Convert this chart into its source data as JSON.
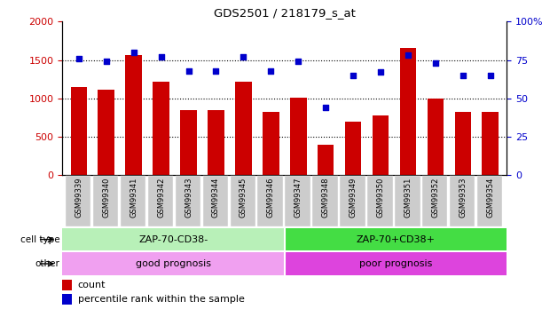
{
  "title": "GDS2501 / 218179_s_at",
  "samples": [
    "GSM99339",
    "GSM99340",
    "GSM99341",
    "GSM99342",
    "GSM99343",
    "GSM99344",
    "GSM99345",
    "GSM99346",
    "GSM99347",
    "GSM99348",
    "GSM99349",
    "GSM99350",
    "GSM99351",
    "GSM99352",
    "GSM99353",
    "GSM99354"
  ],
  "counts": [
    1150,
    1110,
    1560,
    1220,
    840,
    840,
    1220,
    820,
    1010,
    390,
    690,
    770,
    1660,
    990,
    820,
    820
  ],
  "percentiles": [
    76,
    74,
    80,
    77,
    68,
    68,
    77,
    68,
    74,
    44,
    65,
    67,
    78,
    73,
    65,
    65
  ],
  "bar_color": "#cc0000",
  "dot_color": "#0000cc",
  "left_ylim": [
    0,
    2000
  ],
  "right_ylim": [
    0,
    100
  ],
  "left_yticks": [
    0,
    500,
    1000,
    1500,
    2000
  ],
  "right_yticks": [
    0,
    25,
    50,
    75,
    100
  ],
  "right_yticklabels": [
    "0",
    "25",
    "50",
    "75",
    "100%"
  ],
  "grid_values": [
    500,
    1000,
    1500
  ],
  "cell_type_labels": [
    "ZAP-70-CD38-",
    "ZAP-70+CD38+"
  ],
  "cell_type_color_left": "#b8f0b8",
  "cell_type_color_right": "#44dd44",
  "other_labels": [
    "good prognosis",
    "poor prognosis"
  ],
  "other_color_left": "#f0a0f0",
  "other_color_right": "#dd44dd",
  "split_index": 8,
  "tick_label_bg": "#cccccc",
  "bar_width": 0.6
}
